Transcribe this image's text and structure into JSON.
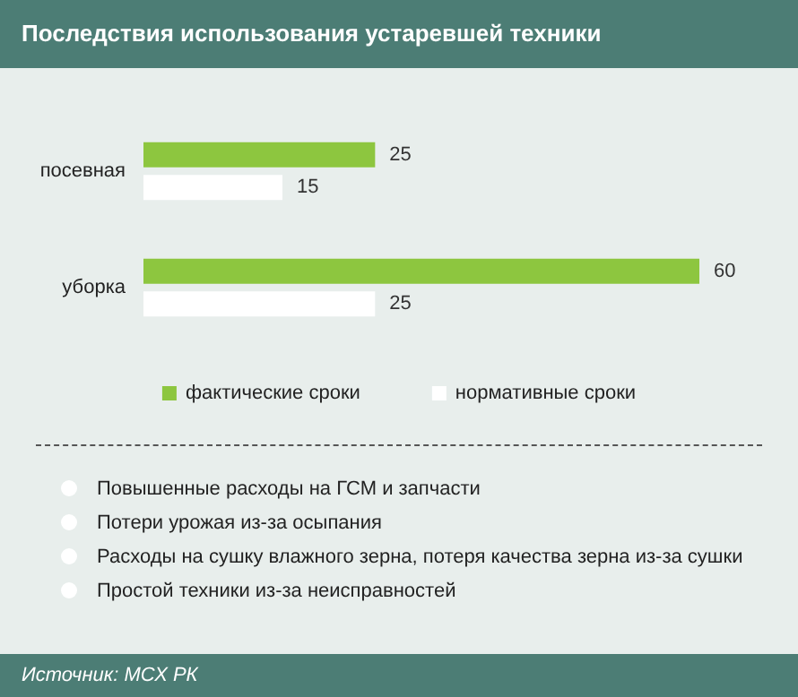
{
  "chart_data": {
    "type": "bar",
    "orientation": "horizontal",
    "title": "Последствия использования устаревшей техники",
    "categories": [
      "посевная",
      "уборка"
    ],
    "series": [
      {
        "name": "фактические сроки",
        "color": "#8dc63f",
        "values": [
          25,
          60
        ]
      },
      {
        "name": "нормативные сроки",
        "color": "#ffffff",
        "values": [
          15,
          25
        ]
      }
    ],
    "data_labels": true,
    "legend": "bottom",
    "annotations": [
      "Повышенные расходы на ГСМ и запчасти",
      "Потери урожая из-за осыпания",
      "Расходы на сушку влажного зерна, потеря качества зерна из-за сушки",
      "Простой техники из-за неисправностей",
      "Источник: МСХ РК"
    ]
  }
}
